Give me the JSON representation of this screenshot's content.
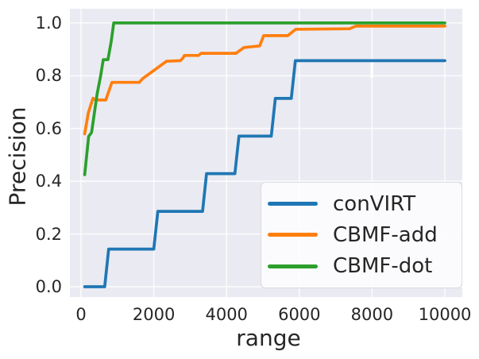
{
  "chart_data": {
    "type": "line",
    "title": "",
    "xlabel": "range",
    "ylabel": "Precision",
    "x_ticks": [
      0,
      2000,
      4000,
      6000,
      8000,
      10000
    ],
    "x_tick_labels": [
      "0",
      "2000",
      "4000",
      "6000",
      "8000",
      "10000"
    ],
    "y_ticks": [
      0.0,
      0.2,
      0.4,
      0.6,
      0.8,
      1.0
    ],
    "y_tick_labels": [
      "0.0",
      "0.2",
      "0.4",
      "0.6",
      "0.8",
      "1.0"
    ],
    "xlim": [
      -306,
      10480
    ],
    "ylim": [
      -0.039,
      1.054
    ],
    "grid": true,
    "plot_background": "#eaeaf2",
    "gridline_color": "#ffffff",
    "legend_position": "lower right",
    "series": [
      {
        "name": "conVIRT",
        "color": "#1f77b4",
        "points": [
          [
            100,
            0.0
          ],
          [
            650,
            0.0
          ],
          [
            760,
            0.143
          ],
          [
            2000,
            0.143
          ],
          [
            2110,
            0.286
          ],
          [
            3340,
            0.286
          ],
          [
            3450,
            0.429
          ],
          [
            4230,
            0.429
          ],
          [
            4340,
            0.571
          ],
          [
            5230,
            0.571
          ],
          [
            5340,
            0.714
          ],
          [
            5780,
            0.714
          ],
          [
            5890,
            0.857
          ],
          [
            10000,
            0.857
          ]
        ]
      },
      {
        "name": "CBMF-add",
        "color": "#ff7f0e",
        "points": [
          [
            100,
            0.58
          ],
          [
            200,
            0.66
          ],
          [
            330,
            0.715
          ],
          [
            400,
            0.708
          ],
          [
            680,
            0.708
          ],
          [
            850,
            0.775
          ],
          [
            1600,
            0.775
          ],
          [
            1700,
            0.79
          ],
          [
            2350,
            0.855
          ],
          [
            2730,
            0.857
          ],
          [
            2800,
            0.867
          ],
          [
            2840,
            0.877
          ],
          [
            3230,
            0.877
          ],
          [
            3300,
            0.885
          ],
          [
            4260,
            0.885
          ],
          [
            4480,
            0.907
          ],
          [
            4910,
            0.913
          ],
          [
            5020,
            0.952
          ],
          [
            5680,
            0.952
          ],
          [
            5900,
            0.976
          ],
          [
            7380,
            0.978
          ],
          [
            7550,
            0.988
          ],
          [
            10000,
            0.988
          ]
        ]
      },
      {
        "name": "CBMF-dot",
        "color": "#2ca02c",
        "points": [
          [
            100,
            0.425
          ],
          [
            210,
            0.57
          ],
          [
            290,
            0.585
          ],
          [
            440,
            0.73
          ],
          [
            540,
            0.8
          ],
          [
            610,
            0.861
          ],
          [
            740,
            0.861
          ],
          [
            830,
            0.93
          ],
          [
            900,
            1.0
          ],
          [
            10000,
            1.0
          ]
        ]
      }
    ]
  }
}
